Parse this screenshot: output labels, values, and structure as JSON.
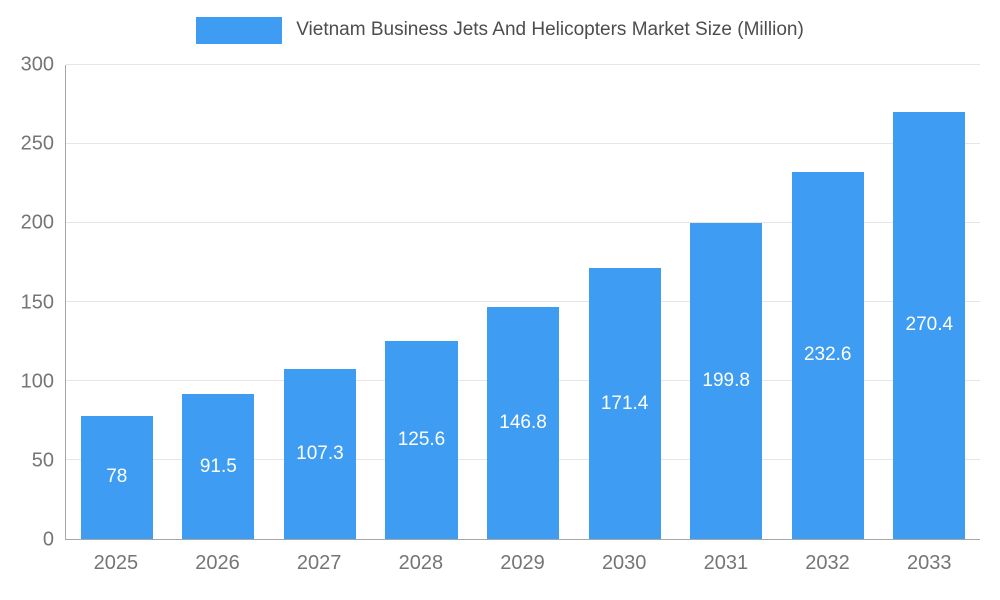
{
  "legend": {
    "title": "Vietnam Business Jets And Helicopters Market Size (Million)"
  },
  "colors": {
    "bar": "#3e9df3",
    "grid": "#e6e6e6",
    "axis": "#a6a6a6",
    "tick_text": "#757575",
    "title_text": "#4d4d4d",
    "value_text": "#ffffff"
  },
  "chart_data": {
    "type": "bar",
    "title": "Vietnam Business Jets And Helicopters Market Size (Million)",
    "categories": [
      "2025",
      "2026",
      "2027",
      "2028",
      "2029",
      "2030",
      "2031",
      "2032",
      "2033"
    ],
    "values": [
      78,
      91.5,
      107.3,
      125.6,
      146.8,
      171.4,
      199.8,
      232.6,
      270.4
    ],
    "value_labels": [
      "78",
      "91.5",
      "107.3",
      "125.6",
      "146.8",
      "171.4",
      "199.8",
      "232.6",
      "270.4"
    ],
    "xlabel": "",
    "ylabel": "",
    "ylim": [
      0,
      300
    ],
    "yticks": [
      0,
      50,
      100,
      150,
      200,
      250,
      300
    ],
    "grid": true,
    "legend_position": "top"
  }
}
